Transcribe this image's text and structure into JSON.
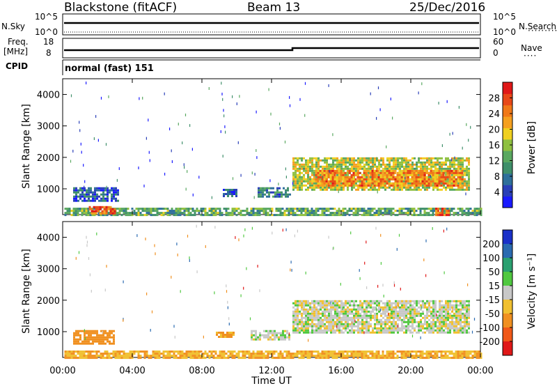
{
  "header": {
    "station": "Blackstone (fitACF)",
    "beam": "Beam 13",
    "date": "25/Dec/2016"
  },
  "params": {
    "nsky_label": "N.Sky",
    "nsky_top": "10^5",
    "nsky_bottom": "10^0",
    "nsearch_label": "N.Search",
    "nsearch_top": "10^5",
    "nsearch_bottom": "10^0",
    "freq_label": "Freq.",
    "freq_unit": "[MHz]",
    "freq_top": "18",
    "freq_bottom": "8",
    "nave_label": "Nave",
    "nave_top": "60",
    "nave_bottom": "0",
    "cpid_label": "CPID",
    "cpid_value": "normal (fast) 151"
  },
  "axes": {
    "ylabel": "Slant Range [km]",
    "xlabel": "Time UT",
    "y_ticks": [
      "1000",
      "2000",
      "3000",
      "4000"
    ],
    "x_ticks": [
      "00:00",
      "04:00",
      "08:00",
      "12:00",
      "16:00",
      "20:00",
      "00:00"
    ]
  },
  "colorbars": {
    "power": {
      "label": "Power [dB]",
      "ticks": [
        "4",
        "8",
        "12",
        "16",
        "20",
        "24",
        "28"
      ],
      "colors": [
        "#1a1aff",
        "#2a3fb8",
        "#2e6f9a",
        "#3f8f6a",
        "#5aa860",
        "#8fc040",
        "#f0d020",
        "#f5a020",
        "#f07818",
        "#e84818",
        "#e01818"
      ]
    },
    "velocity": {
      "label": "Velocity [m s⁻¹]",
      "ticks": [
        "200",
        "100",
        "50",
        "15",
        "-15",
        "-50",
        "-100",
        "-200"
      ],
      "colors": [
        "#1a30c8",
        "#2a6ab0",
        "#2aa070",
        "#50c840",
        "#c8c8c8",
        "#f0c030",
        "#f09020",
        "#f05818",
        "#e01818"
      ]
    }
  },
  "chart_data": [
    {
      "type": "heatmap",
      "title": "Power",
      "xlabel": "Time UT",
      "ylabel": "Slant Range [km]",
      "xlim": [
        0,
        24
      ],
      "ylim": [
        180,
        4500
      ],
      "regions": [
        {
          "t_start": 0.1,
          "t_end": 24.0,
          "r_min": 180,
          "r_max": 400,
          "level_db": 12
        },
        {
          "t_start": 1.5,
          "t_end": 3.0,
          "r_min": 200,
          "r_max": 450,
          "level_db": 24
        },
        {
          "t_start": 0.6,
          "t_end": 3.2,
          "r_min": 650,
          "r_max": 1050,
          "level_db": 6
        },
        {
          "t_start": 9.2,
          "t_end": 10.0,
          "r_min": 800,
          "r_max": 1000,
          "level_db": 6
        },
        {
          "t_start": 11.2,
          "t_end": 13.0,
          "r_min": 750,
          "r_max": 1050,
          "level_db": 8
        },
        {
          "t_start": 13.2,
          "t_end": 23.3,
          "r_min": 1000,
          "r_max": 2000,
          "level_db": 16
        },
        {
          "t_start": 14.5,
          "t_end": 23.0,
          "r_min": 1100,
          "r_max": 1600,
          "level_db": 22
        },
        {
          "t_start": 21.4,
          "t_end": 22.2,
          "r_min": 200,
          "r_max": 400,
          "level_db": 24
        }
      ]
    },
    {
      "type": "heatmap",
      "title": "Velocity",
      "xlabel": "Time UT",
      "ylabel": "Slant Range [km]",
      "xlim": [
        0,
        24
      ],
      "ylim": [
        180,
        4500
      ],
      "regions": [
        {
          "t_start": 0.1,
          "t_end": 24.0,
          "r_min": 180,
          "r_max": 400,
          "velocity": -30
        },
        {
          "t_start": 0.6,
          "t_end": 3.0,
          "r_min": 600,
          "r_max": 1050,
          "velocity": -60
        },
        {
          "t_start": 8.8,
          "t_end": 9.8,
          "r_min": 850,
          "r_max": 1000,
          "velocity": -40
        },
        {
          "t_start": 10.8,
          "t_end": 13.0,
          "r_min": 750,
          "r_max": 1050,
          "velocity": 0
        },
        {
          "t_start": 13.2,
          "t_end": 23.3,
          "r_min": 1000,
          "r_max": 2000,
          "velocity": 0
        }
      ]
    }
  ]
}
